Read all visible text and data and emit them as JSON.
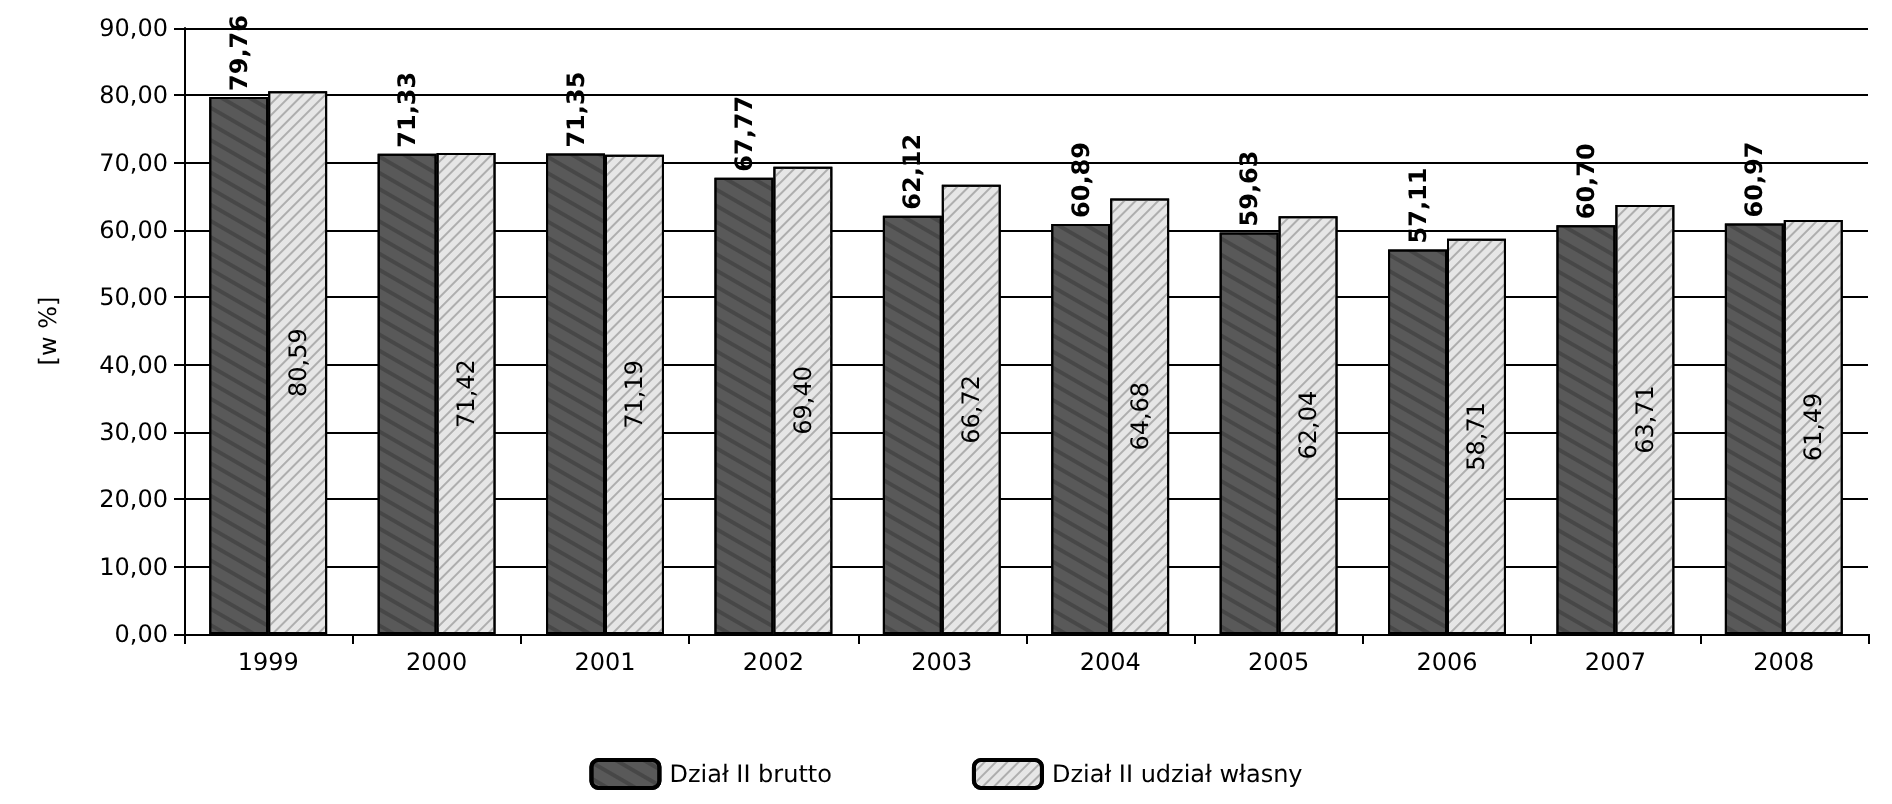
{
  "chart_data": {
    "type": "bar",
    "ylabel": "[w %]",
    "categories": [
      "1999",
      "2000",
      "2001",
      "2002",
      "2003",
      "2004",
      "2005",
      "2006",
      "2007",
      "2008"
    ],
    "series": [
      {
        "name": "Dział II brutto",
        "color": "#595959",
        "values": [
          79.76,
          71.33,
          71.35,
          67.77,
          62.12,
          60.89,
          59.63,
          57.11,
          60.7,
          60.97
        ],
        "value_labels": [
          "79,76",
          "71,33",
          "71,35",
          "67,77",
          "62,12",
          "60,89",
          "59,63",
          "57,11",
          "60,70",
          "60,97"
        ]
      },
      {
        "name": "Dział II udział własny",
        "color": "#e6e6e6",
        "values": [
          80.59,
          71.42,
          71.19,
          69.4,
          66.72,
          64.68,
          62.04,
          58.71,
          63.71,
          61.49
        ],
        "value_labels": [
          "80,59",
          "71,42",
          "71,19",
          "69,40",
          "66,72",
          "64,68",
          "62,04",
          "58,71",
          "63,71",
          "61,49"
        ]
      }
    ],
    "ylim": [
      0,
      90
    ],
    "yticks": [
      {
        "value": 0,
        "label": "0,00"
      },
      {
        "value": 10,
        "label": "10,00"
      },
      {
        "value": 20,
        "label": "20,00"
      },
      {
        "value": 30,
        "label": "30,00"
      },
      {
        "value": 40,
        "label": "40,00"
      },
      {
        "value": 50,
        "label": "50,00"
      },
      {
        "value": 60,
        "label": "60,00"
      },
      {
        "value": 70,
        "label": "70,00"
      },
      {
        "value": 80,
        "label": "80,00"
      },
      {
        "value": 90,
        "label": "90,00"
      }
    ],
    "grid": "y",
    "legend": "bottom"
  }
}
